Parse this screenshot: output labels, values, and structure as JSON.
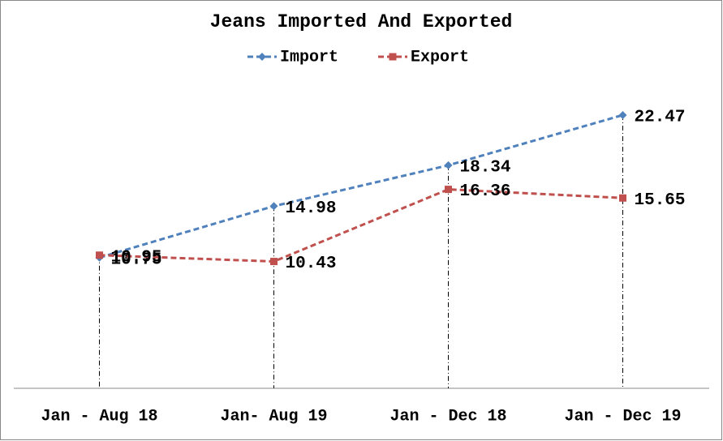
{
  "chart_data": {
    "type": "line",
    "title": "Jeans Imported And Exported",
    "categories": [
      "Jan - Aug 18",
      "Jan- Aug 19",
      "Jan - Dec 18",
      "Jan - Dec 19"
    ],
    "series": [
      {
        "name": "Import",
        "color": "#4f81bd",
        "values": [
          10.75,
          14.98,
          18.34,
          22.47
        ]
      },
      {
        "name": "Export",
        "color": "#c0504d",
        "values": [
          10.95,
          10.43,
          16.36,
          15.65
        ]
      }
    ],
    "ylim": [
      0,
      25
    ],
    "legend": "top"
  }
}
